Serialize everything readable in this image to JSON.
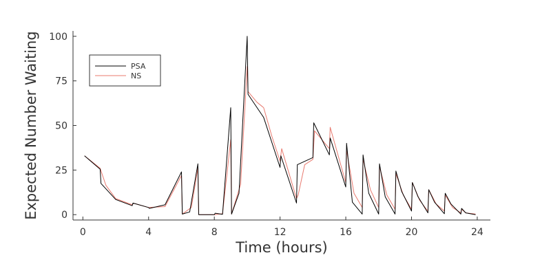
{
  "chart_data": {
    "type": "line",
    "xlabel": "Time (hours)",
    "ylabel": "Expected Number Waiting",
    "xlim": [
      -0.6,
      24.8
    ],
    "ylim": [
      -3,
      103
    ],
    "xticks": [
      0,
      4,
      8,
      12,
      16,
      20,
      24
    ],
    "yticks": [
      0,
      25,
      50,
      75,
      100
    ],
    "x_tick_labels": [
      "0",
      "4",
      "8",
      "12",
      "16",
      "20",
      "24"
    ],
    "y_tick_labels": [
      "0",
      "25",
      "50",
      "75",
      "100"
    ],
    "grid": false,
    "legend": {
      "placement": "top-left"
    },
    "series": [
      {
        "name": "PSA",
        "color": "#000000",
        "points": [
          [
            0.1,
            33
          ],
          [
            1.05,
            25.5
          ],
          [
            1.1,
            17.5
          ],
          [
            2.0,
            8.5
          ],
          [
            3.0,
            5
          ],
          [
            3.05,
            6.5
          ],
          [
            4.0,
            4
          ],
          [
            4.05,
            3.5
          ],
          [
            5.0,
            5.5
          ],
          [
            6.0,
            24
          ],
          [
            6.05,
            0.3
          ],
          [
            6.5,
            1.5
          ],
          [
            7.0,
            28.5
          ],
          [
            7.05,
            0
          ],
          [
            8.0,
            0
          ],
          [
            8.05,
            0.8
          ],
          [
            8.5,
            0.2
          ],
          [
            9.0,
            60
          ],
          [
            9.05,
            0.3
          ],
          [
            9.5,
            12
          ],
          [
            10.0,
            100
          ],
          [
            10.05,
            67.5
          ],
          [
            11.0,
            54.5
          ],
          [
            12.0,
            26.5
          ],
          [
            12.05,
            33
          ],
          [
            13.0,
            6.5
          ],
          [
            13.05,
            28
          ],
          [
            14.0,
            32
          ],
          [
            14.05,
            51.5
          ],
          [
            15.0,
            33.5
          ],
          [
            15.05,
            43
          ],
          [
            16.0,
            15.5
          ],
          [
            16.05,
            40
          ],
          [
            16.4,
            7
          ],
          [
            17.0,
            0.3
          ],
          [
            17.05,
            33.5
          ],
          [
            17.4,
            12
          ],
          [
            18.0,
            0.3
          ],
          [
            18.05,
            28.5
          ],
          [
            18.4,
            10
          ],
          [
            19.0,
            0.3
          ],
          [
            19.05,
            24.5
          ],
          [
            19.4,
            13
          ],
          [
            20.0,
            2
          ],
          [
            20.05,
            18
          ],
          [
            20.4,
            10
          ],
          [
            21.0,
            1
          ],
          [
            21.05,
            14
          ],
          [
            21.4,
            7
          ],
          [
            22.0,
            0.5
          ],
          [
            22.05,
            12
          ],
          [
            22.4,
            6
          ],
          [
            23.0,
            0.3
          ],
          [
            23.05,
            3.5
          ],
          [
            23.3,
            1
          ],
          [
            23.9,
            0
          ]
        ]
      },
      {
        "name": "NS",
        "color": "#e8796e",
        "points": [
          [
            0.1,
            33
          ],
          [
            1.05,
            26
          ],
          [
            1.4,
            16.5
          ],
          [
            2.0,
            9
          ],
          [
            3.0,
            5.5
          ],
          [
            3.05,
            6.5
          ],
          [
            4.0,
            4
          ],
          [
            5.0,
            4.5
          ],
          [
            6.0,
            22
          ],
          [
            6.05,
            0.3
          ],
          [
            6.6,
            4
          ],
          [
            7.0,
            26
          ],
          [
            7.05,
            0
          ],
          [
            8.0,
            0
          ],
          [
            8.5,
            0.5
          ],
          [
            9.0,
            42
          ],
          [
            9.05,
            0.3
          ],
          [
            9.6,
            17
          ],
          [
            10.0,
            83
          ],
          [
            10.05,
            69
          ],
          [
            10.6,
            63
          ],
          [
            11.0,
            60
          ],
          [
            11.5,
            44
          ],
          [
            12.0,
            30
          ],
          [
            12.1,
            37
          ],
          [
            13.0,
            9
          ],
          [
            13.1,
            11
          ],
          [
            13.5,
            28
          ],
          [
            14.0,
            31
          ],
          [
            14.1,
            47
          ],
          [
            15.0,
            37
          ],
          [
            15.05,
            49
          ],
          [
            16.0,
            18
          ],
          [
            16.05,
            36
          ],
          [
            16.5,
            12
          ],
          [
            17.0,
            4
          ],
          [
            17.05,
            31
          ],
          [
            17.5,
            14
          ],
          [
            18.0,
            4
          ],
          [
            18.05,
            27
          ],
          [
            18.5,
            11
          ],
          [
            19.0,
            3
          ],
          [
            19.05,
            23
          ],
          [
            19.5,
            11
          ],
          [
            20.0,
            3
          ],
          [
            20.05,
            18
          ],
          [
            20.5,
            8
          ],
          [
            21.0,
            2
          ],
          [
            21.05,
            14
          ],
          [
            21.5,
            6
          ],
          [
            22.0,
            2
          ],
          [
            22.05,
            11
          ],
          [
            22.5,
            4
          ],
          [
            23.0,
            1
          ],
          [
            23.05,
            3
          ],
          [
            23.3,
            1
          ],
          [
            23.9,
            0.3
          ]
        ]
      }
    ]
  }
}
